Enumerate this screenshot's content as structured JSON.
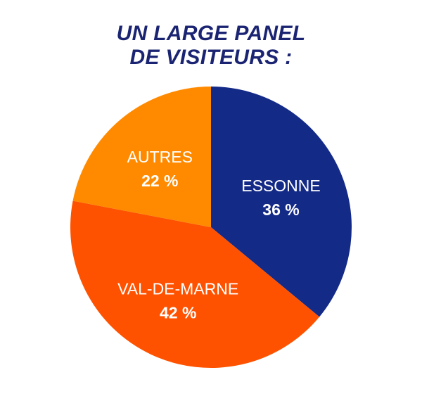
{
  "title": {
    "line1": "UN LARGE PANEL",
    "line2": "DE VISITEURS :"
  },
  "colors": {
    "title": "#1a2472",
    "essonne": "#142a87",
    "val_de_marne": "#ff5200",
    "autres": "#ff8a00",
    "label_text": "#ffffff"
  },
  "chart_data": {
    "type": "pie",
    "title": "UN LARGE PANEL DE VISITEURS :",
    "start": "top, clockwise",
    "slices": [
      {
        "label": "ESSONNE",
        "value": 36,
        "value_label": "36 %",
        "color": "#142a87"
      },
      {
        "label": "VAL-DE-MARNE",
        "value": 42,
        "value_label": "42 %",
        "color": "#ff5200"
      },
      {
        "label": "AUTRES",
        "value": 22,
        "value_label": "22 %",
        "color": "#ff8a00"
      }
    ]
  }
}
